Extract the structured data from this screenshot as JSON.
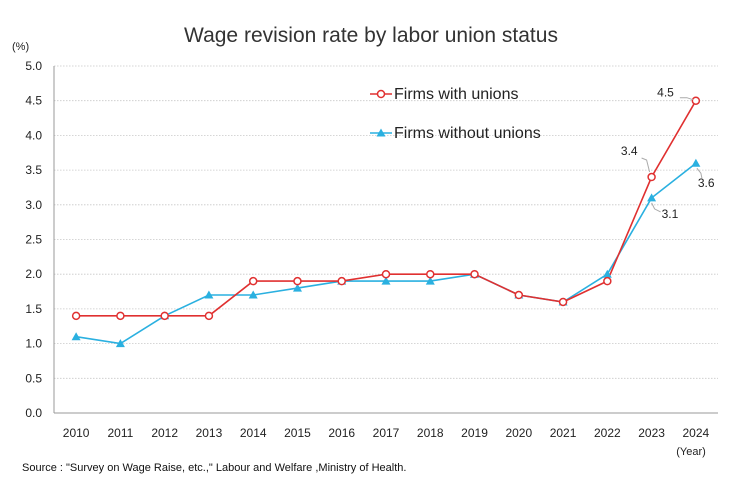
{
  "chart_data": {
    "type": "line",
    "title": "Wage revision rate by labor union status",
    "ylabel": "(%)",
    "xlabel": "(Year)",
    "ylim": [
      0,
      5.0
    ],
    "yticks": [
      "0.0",
      "0.5",
      "1.0",
      "1.5",
      "2.0",
      "2.5",
      "3.0",
      "3.5",
      "4.0",
      "4.5",
      "5.0"
    ],
    "categories": [
      "2010",
      "2011",
      "2012",
      "2013",
      "2014",
      "2015",
      "2016",
      "2017",
      "2018",
      "2019",
      "2020",
      "2021",
      "2022",
      "2023",
      "2024"
    ],
    "series": [
      {
        "name": "Firms with unions",
        "color": "#e03030",
        "marker": "open-circle",
        "values": [
          1.4,
          1.4,
          1.4,
          1.4,
          1.9,
          1.9,
          1.9,
          2.0,
          2.0,
          2.0,
          1.7,
          1.6,
          1.9,
          3.4,
          4.5
        ]
      },
      {
        "name": "Firms without unions",
        "color": "#2ab0e0",
        "marker": "filled-triangle",
        "values": [
          1.1,
          1.0,
          1.4,
          1.7,
          1.7,
          1.8,
          1.9,
          1.9,
          1.9,
          2.0,
          1.7,
          1.6,
          2.0,
          3.1,
          3.6
        ]
      }
    ],
    "data_labels": [
      {
        "text": "4.5",
        "series": 0,
        "index": 14
      },
      {
        "text": "3.4",
        "series": 0,
        "index": 13
      },
      {
        "text": "3.6",
        "series": 1,
        "index": 14
      },
      {
        "text": "3.1",
        "series": 1,
        "index": 13
      }
    ],
    "grid": true,
    "legend_position": "top-right-inside",
    "source": "Source : \"Survey on Wage Raise, etc.,\" Labour and Welfare ,Ministry of Health."
  }
}
